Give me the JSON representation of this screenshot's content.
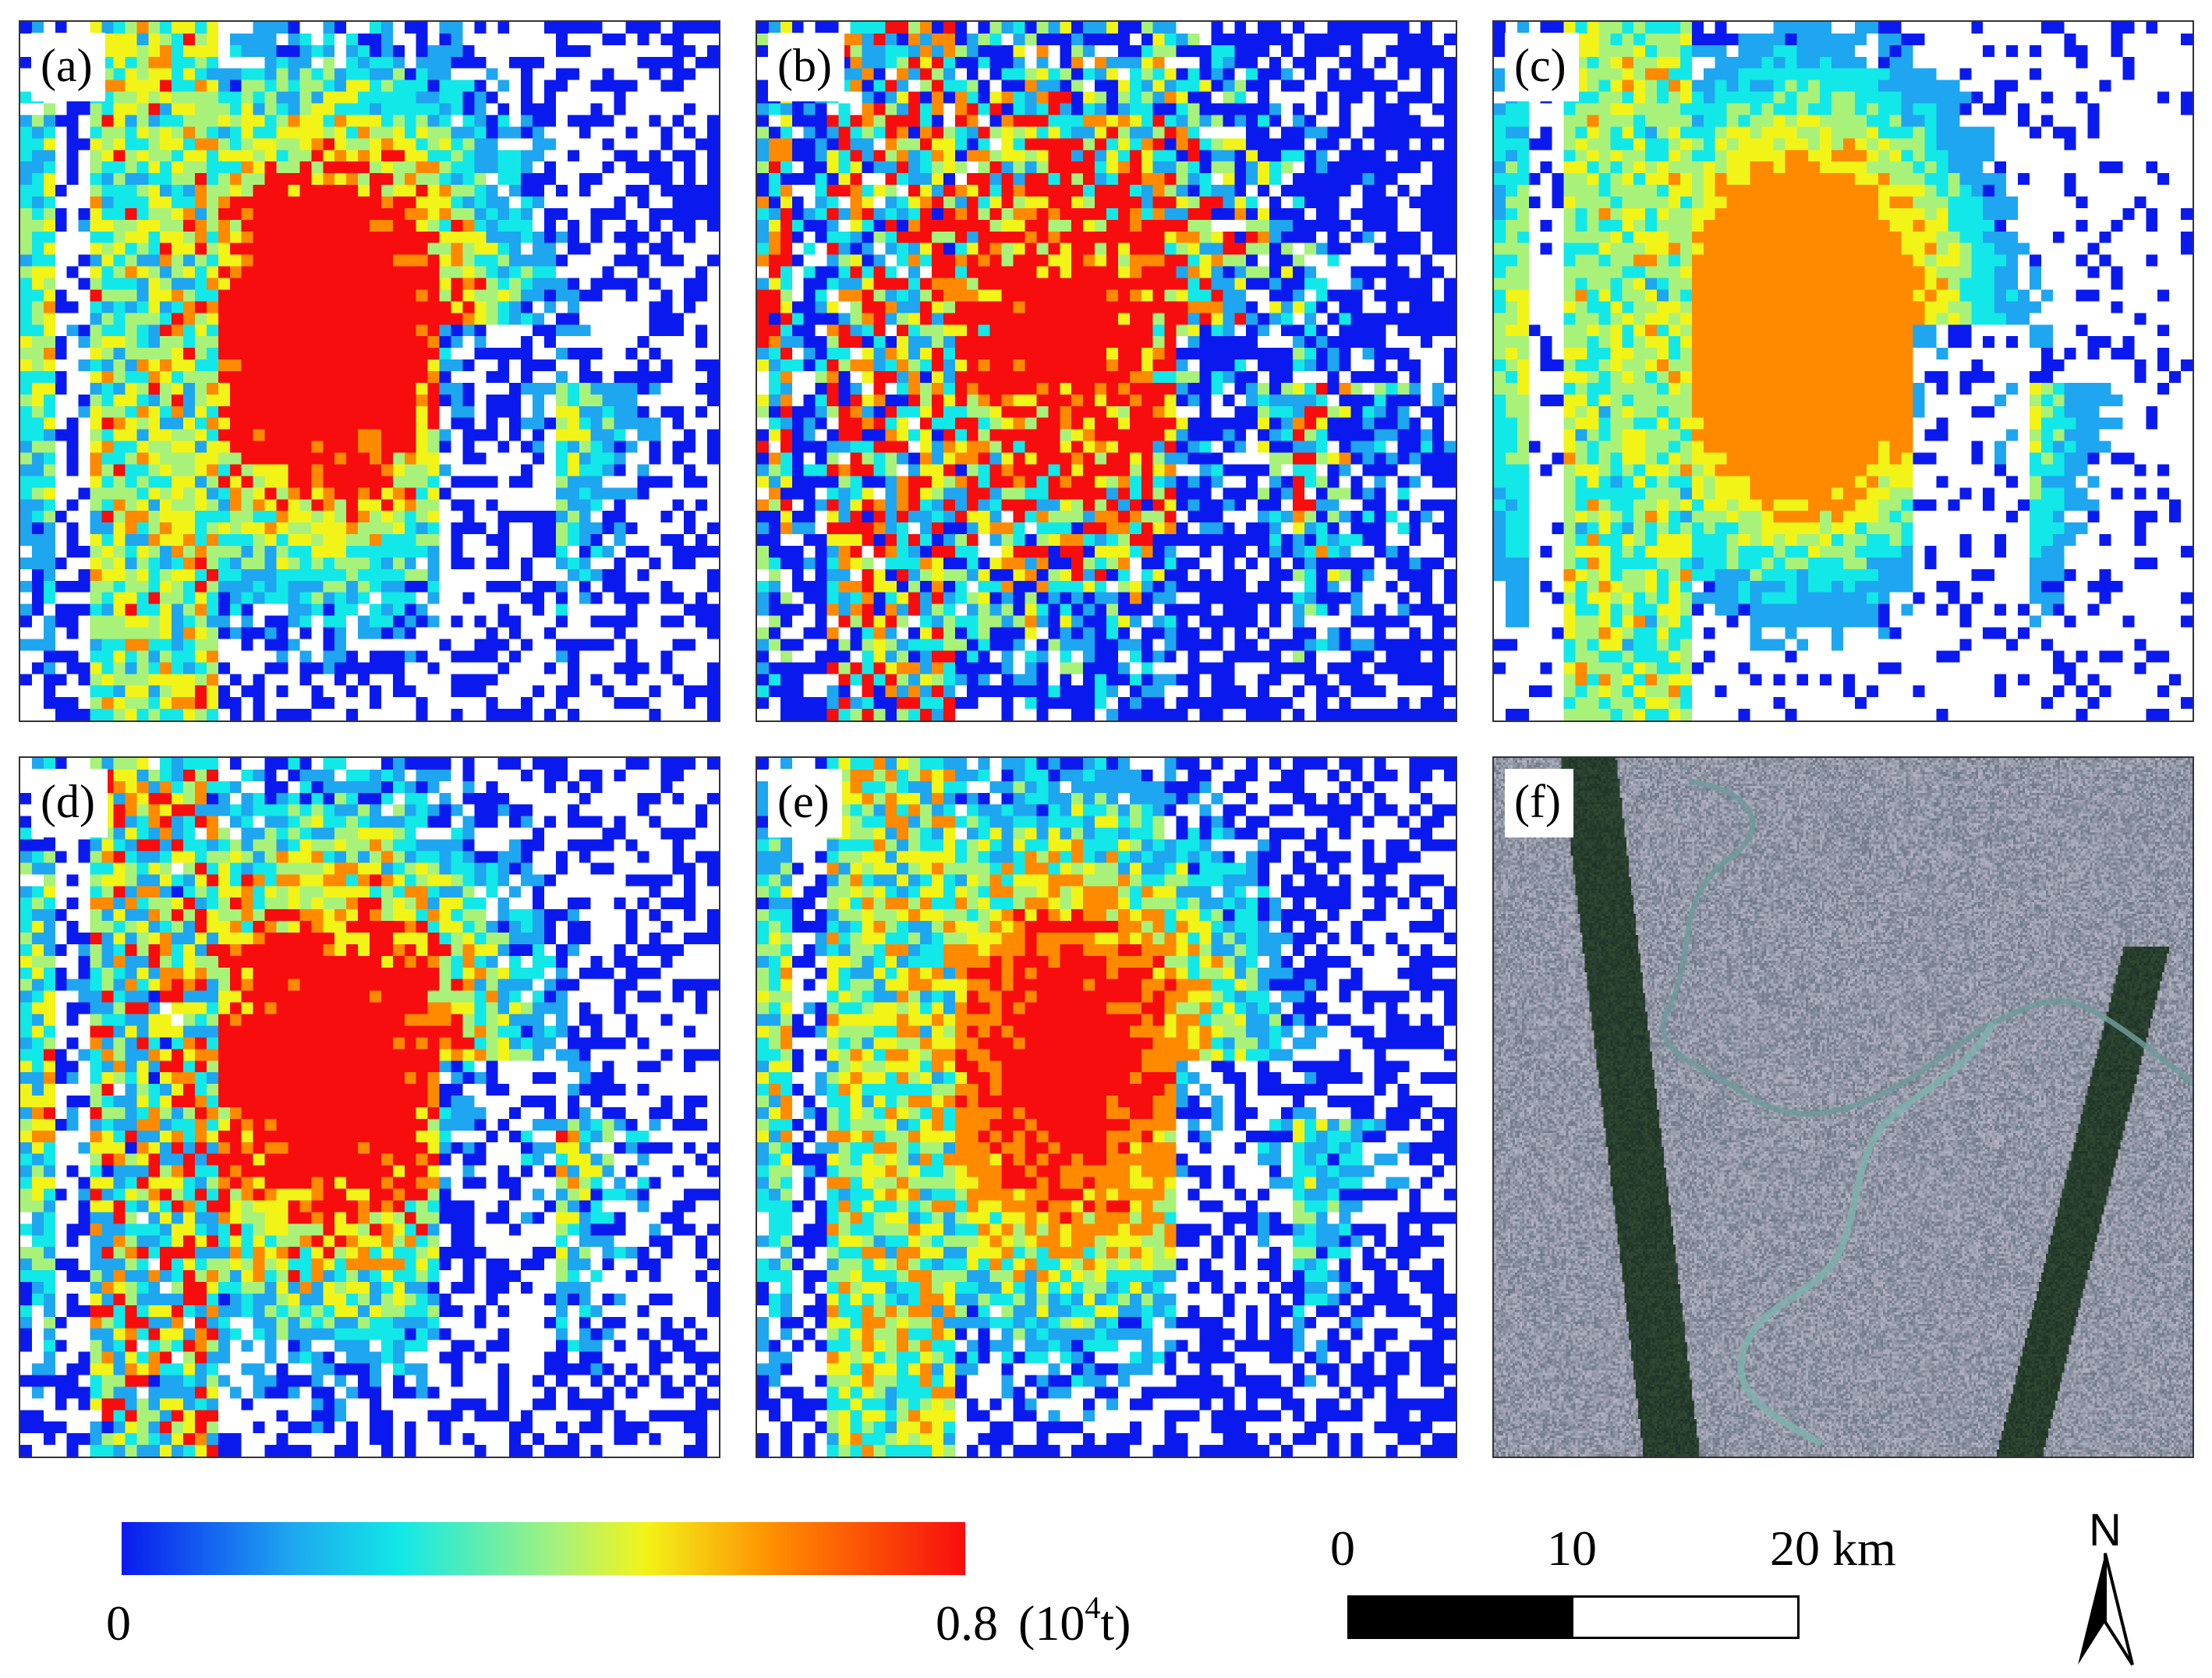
{
  "panels": [
    {
      "id": "a",
      "label": "(a)"
    },
    {
      "id": "b",
      "label": "(b)"
    },
    {
      "id": "c",
      "label": "(c)"
    },
    {
      "id": "d",
      "label": "(d)"
    },
    {
      "id": "e",
      "label": "(e)"
    },
    {
      "id": "f",
      "label": "(f)"
    }
  ],
  "colorbar": {
    "min_label": "0",
    "max_label": "0.8",
    "unit_prefix": "(10",
    "unit_exponent": "4",
    "unit_suffix": "t)",
    "colors": [
      "#0a1aef",
      "#1ea6f0",
      "#12e8e8",
      "#a8f27a",
      "#f2f418",
      "#ff8a00",
      "#f70d0d"
    ]
  },
  "scalebar": {
    "labels": [
      "0",
      "10",
      "20 km"
    ]
  },
  "north_arrow": {
    "label": "N"
  }
}
